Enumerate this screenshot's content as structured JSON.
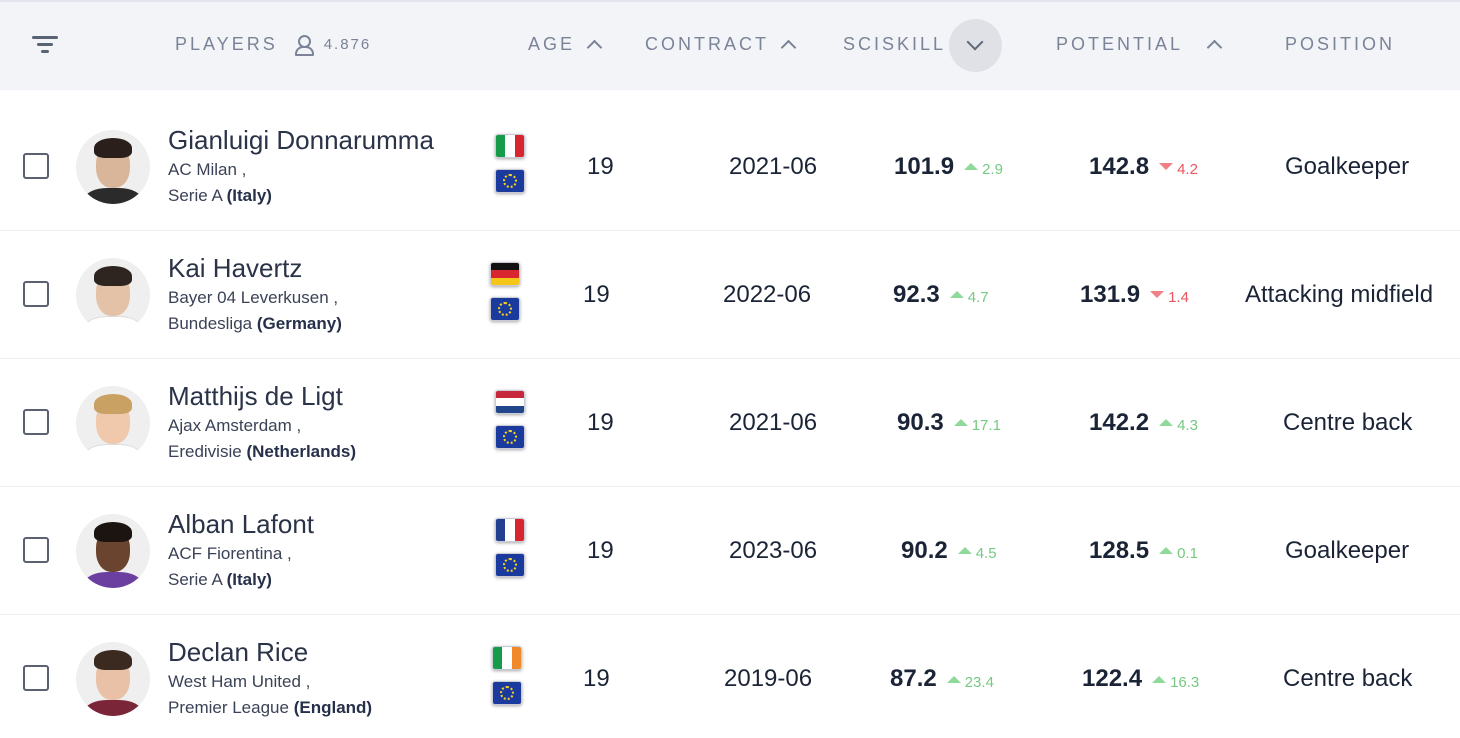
{
  "header": {
    "players_label": "PLAYERS",
    "players_count": "4.876",
    "age_label": "AGE",
    "contract_label": "CONTRACT",
    "sciskill_label": "SCISKILL",
    "potential_label": "POTENTIAL",
    "position_label": "POSITION"
  },
  "colors": {
    "delta_up": "#75c982",
    "delta_down": "#e8555e",
    "header_bg": "#f3f4f8"
  },
  "players": [
    {
      "name": "Gianluigi Donnarumma",
      "club": "AC Milan ,",
      "league": "Serie A",
      "country": "(Italy)",
      "nation_flag": "italy-flag",
      "age": "19",
      "contract": "2021-06",
      "sciskill": "101.9",
      "sciskill_delta": "2.9",
      "sciskill_trend": "up",
      "potential": "142.8",
      "potential_delta": "4.2",
      "potential_trend": "down",
      "position": "Goalkeeper"
    },
    {
      "name": "Kai Havertz",
      "club": "Bayer 04 Leverkusen ,",
      "league": "Bundesliga",
      "country": "(Germany)",
      "nation_flag": "germany-flag",
      "age": "19",
      "contract": "2022-06",
      "sciskill": "92.3",
      "sciskill_delta": "4.7",
      "sciskill_trend": "up",
      "potential": "131.9",
      "potential_delta": "1.4",
      "potential_trend": "down",
      "position": "Attacking midfield"
    },
    {
      "name": "Matthijs de Ligt",
      "club": "Ajax Amsterdam ,",
      "league": "Eredivisie",
      "country": "(Netherlands)",
      "nation_flag": "netherlands-flag",
      "age": "19",
      "contract": "2021-06",
      "sciskill": "90.3",
      "sciskill_delta": "17.1",
      "sciskill_trend": "up",
      "potential": "142.2",
      "potential_delta": "4.3",
      "potential_trend": "up",
      "position": "Centre back"
    },
    {
      "name": "Alban Lafont",
      "club": "ACF Fiorentina ,",
      "league": "Serie A",
      "country": "(Italy)",
      "nation_flag": "france-flag",
      "age": "19",
      "contract": "2023-06",
      "sciskill": "90.2",
      "sciskill_delta": "4.5",
      "sciskill_trend": "up",
      "potential": "128.5",
      "potential_delta": "0.1",
      "potential_trend": "up",
      "position": "Goalkeeper"
    },
    {
      "name": "Declan Rice",
      "club": "West Ham United ,",
      "league": "Premier League",
      "country": "(England)",
      "nation_flag": "ireland-flag",
      "age": "19",
      "contract": "2019-06",
      "sciskill": "87.2",
      "sciskill_delta": "23.4",
      "sciskill_trend": "up",
      "potential": "122.4",
      "potential_delta": "16.3",
      "potential_trend": "up",
      "position": "Centre back"
    }
  ]
}
